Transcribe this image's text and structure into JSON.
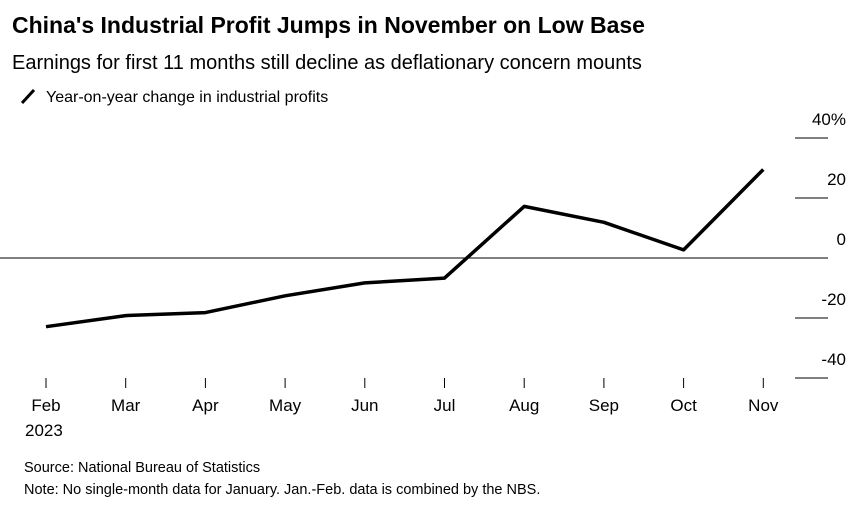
{
  "chart_data": {
    "type": "line",
    "title": "China's Industrial Profit Jumps in November on Low Base",
    "subtitle": "Earnings for first 11 months still decline as deflationary concern mounts",
    "categories": [
      "Feb",
      "Mar",
      "Apr",
      "May",
      "Jun",
      "Jul",
      "Aug",
      "Sep",
      "Oct",
      "Nov"
    ],
    "first_category_year": "2023",
    "series": [
      {
        "name": "Year-on-year change in industrial profits",
        "color": "#000000",
        "values": [
          -22.9,
          -19.2,
          -18.2,
          -12.6,
          -8.3,
          -6.7,
          17.2,
          11.9,
          2.7,
          29.5
        ]
      }
    ],
    "ylim": [
      -40,
      40
    ],
    "yticks": [
      -40,
      -20,
      0,
      20,
      {
        "value": 40,
        "label": "40%"
      }
    ],
    "zero_line": true,
    "source": "Source: National Bureau of Statistics",
    "note": "Note: No single-month data for January. Jan.-Feb. data is combined by the NBS."
  }
}
